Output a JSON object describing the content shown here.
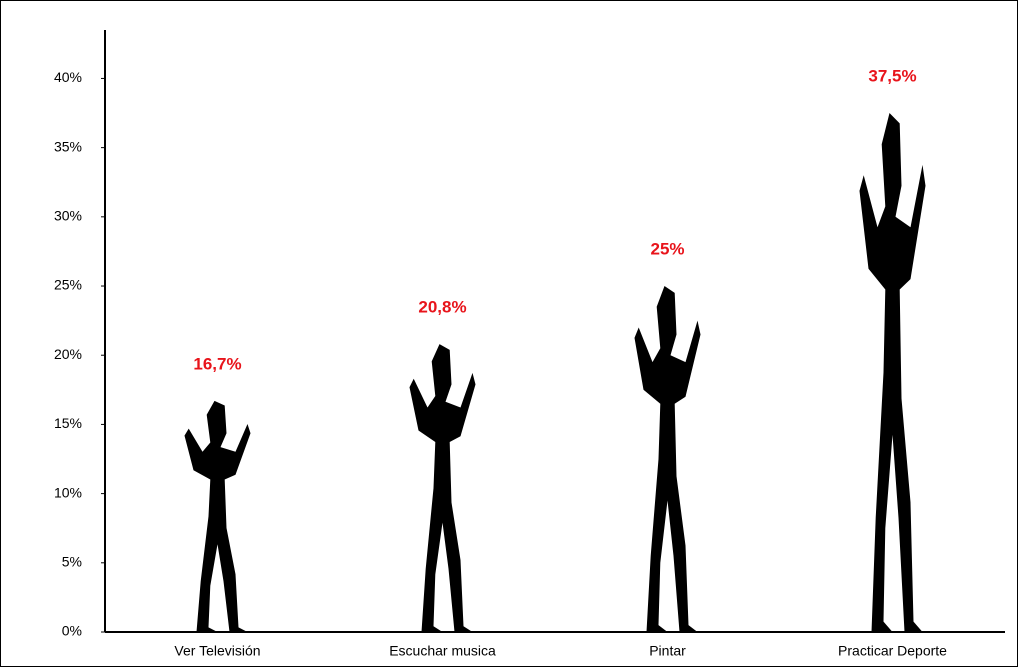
{
  "chart_data": {
    "type": "bar",
    "categories": [
      "Ver Televisión",
      "Escuchar musica",
      "Pintar",
      "Practicar Deporte"
    ],
    "values": [
      16.7,
      20.8,
      25,
      37.5
    ],
    "value_labels": [
      "16,7%",
      "20,8%",
      "25%",
      "37,5%"
    ],
    "color": "#000000",
    "label_color": "#e8141b",
    "ylim": [
      0,
      43.5
    ],
    "yticks": [
      {
        "value": 0,
        "label": "0%"
      },
      {
        "value": 5,
        "label": "5%"
      },
      {
        "value": 10,
        "label": "10%"
      },
      {
        "value": 15,
        "label": "15%"
      },
      {
        "value": 20,
        "label": "20%"
      },
      {
        "value": 25,
        "label": "25%"
      },
      {
        "value": 30,
        "label": "30%"
      },
      {
        "value": 35,
        "label": "35%"
      },
      {
        "value": 40,
        "label": "40%"
      }
    ],
    "grid": false
  }
}
